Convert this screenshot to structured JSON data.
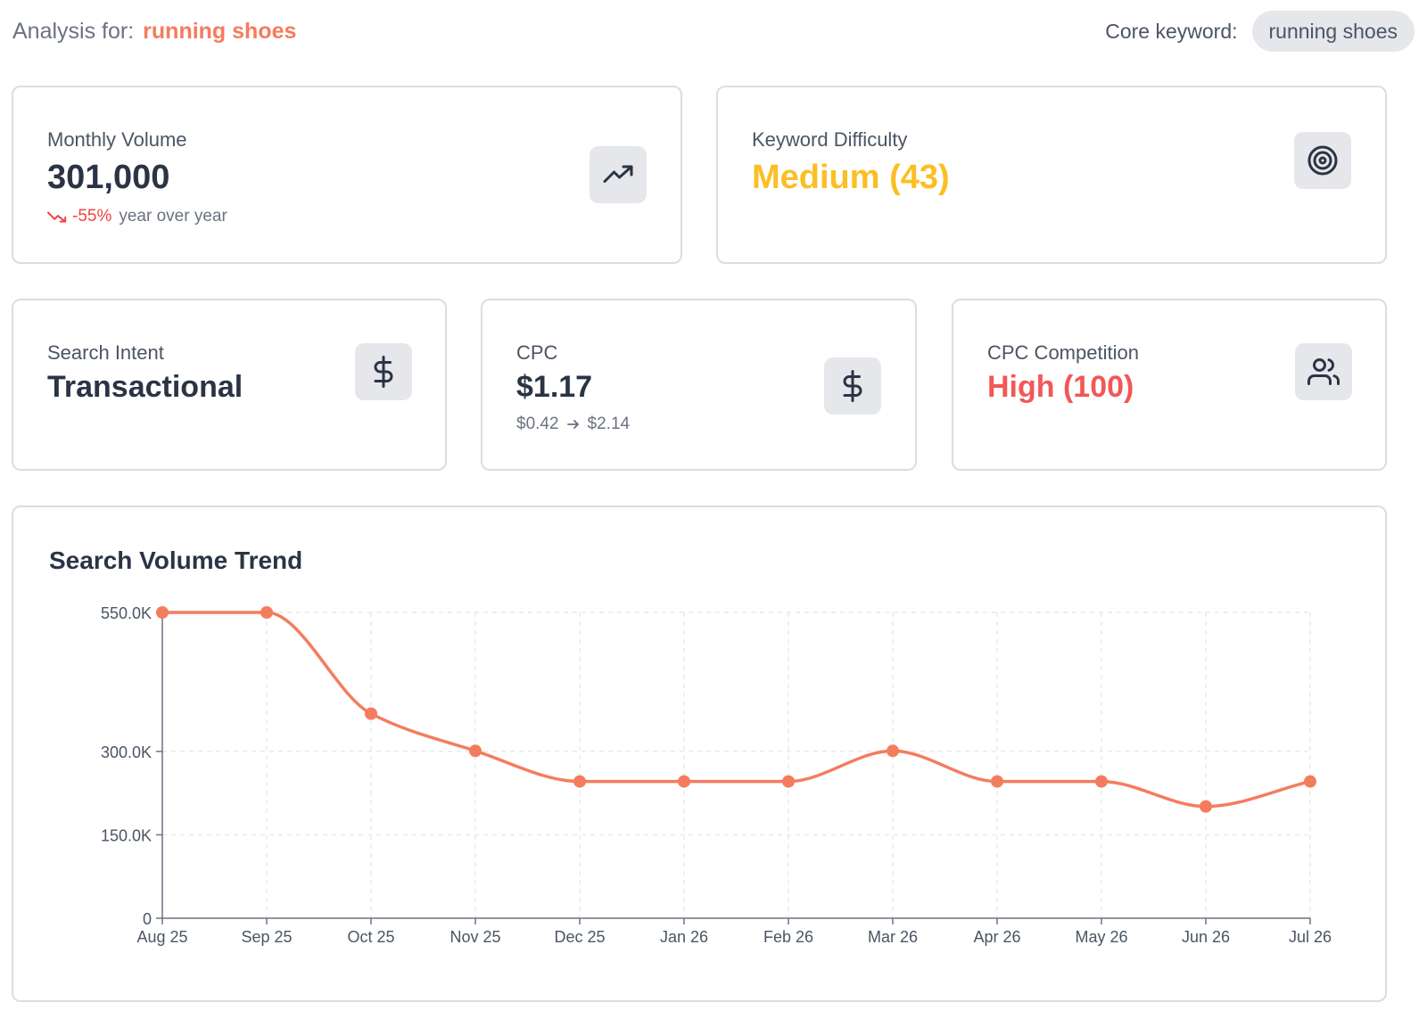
{
  "header": {
    "analysis_label": "Analysis for:",
    "keyword": "running shoes",
    "core_label": "Core keyword:",
    "core_value": "running shoes"
  },
  "cards": {
    "monthly_volume": {
      "label": "Monthly Volume",
      "value": "301,000",
      "change": "-55%",
      "change_suffix": "year over year",
      "icon": "trending-up-icon"
    },
    "keyword_difficulty": {
      "label": "Keyword Difficulty",
      "value": "Medium (43)",
      "color": "#fbbf24",
      "icon": "target-icon"
    },
    "search_intent": {
      "label": "Search Intent",
      "value": "Transactional",
      "icon": "dollar-icon"
    },
    "cpc": {
      "label": "CPC",
      "value": "$1.17",
      "range_low": "$0.42",
      "range_high": "$2.14",
      "icon": "dollar-icon"
    },
    "cpc_competition": {
      "label": "CPC Competition",
      "value": "High (100)",
      "color": "#f25757",
      "icon": "users-icon"
    }
  },
  "colors": {
    "accent": "#f47c5e",
    "negative": "#ef4444",
    "text": "#2b3445",
    "muted": "#6b7280"
  },
  "chart_data": {
    "type": "line",
    "title": "Search Volume Trend",
    "categories": [
      "Aug 25",
      "Sep 25",
      "Oct 25",
      "Nov 25",
      "Dec 25",
      "Jan 26",
      "Feb 26",
      "Mar 26",
      "Apr 26",
      "May 26",
      "Jun 26",
      "Jul 26"
    ],
    "series": [
      {
        "values": [
          550000,
          550000,
          368000,
          301000,
          246000,
          246000,
          246000,
          301000,
          246000,
          246000,
          201000,
          246000
        ]
      }
    ],
    "yticks": [
      0,
      150000,
      300000,
      550000
    ],
    "ytick_labels": [
      "0",
      "150.0K",
      "300.0K",
      "550.0K"
    ],
    "ylim": [
      0,
      550000
    ],
    "grid": true,
    "color": "#f47c5e"
  }
}
